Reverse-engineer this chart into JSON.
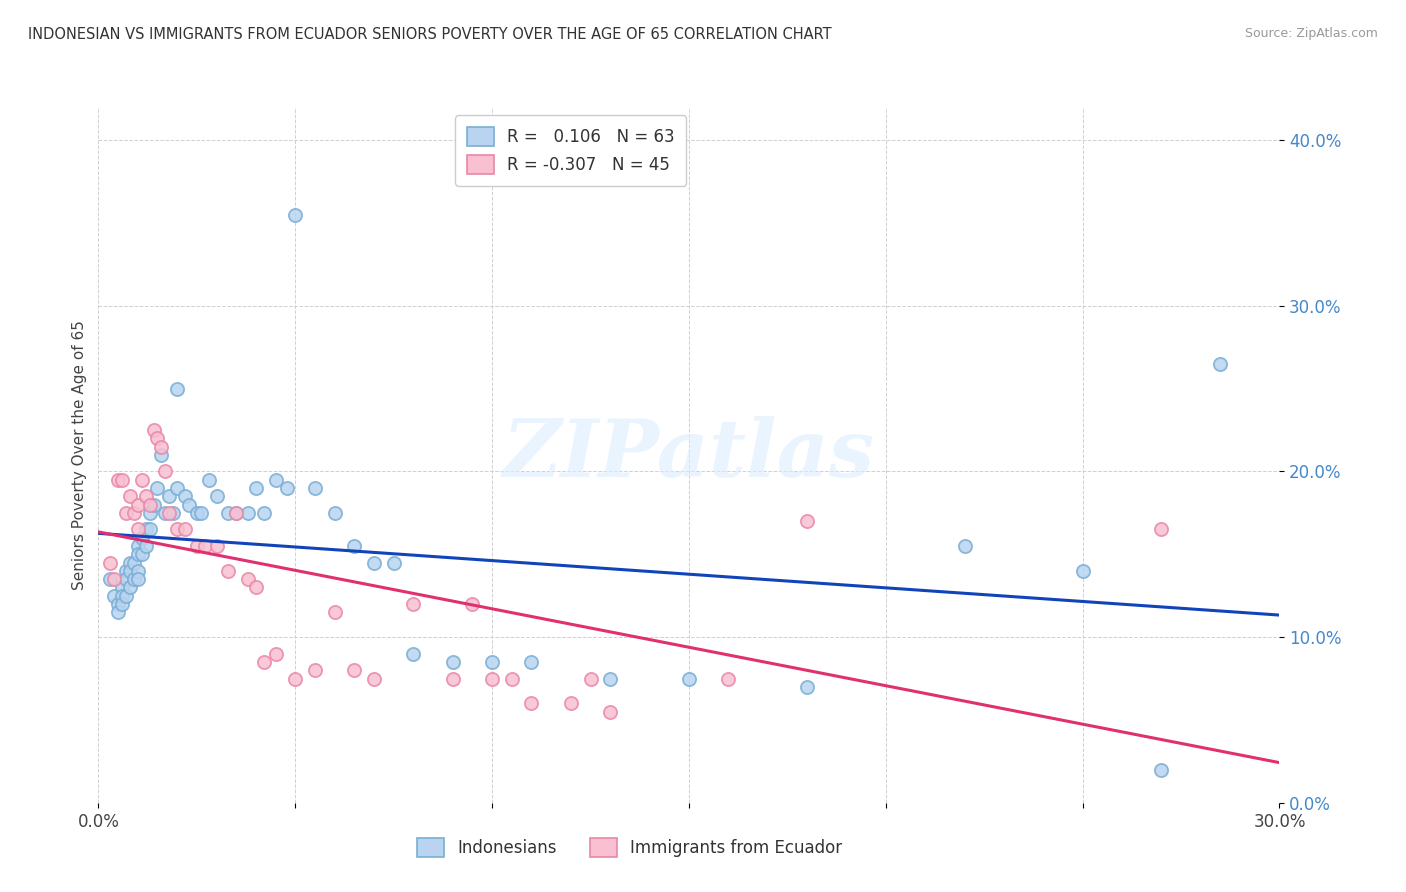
{
  "title": "INDONESIAN VS IMMIGRANTS FROM ECUADOR SENIORS POVERTY OVER THE AGE OF 65 CORRELATION CHART",
  "source": "Source: ZipAtlas.com",
  "ylabel": "Seniors Poverty Over the Age of 65",
  "xlim": [
    0.0,
    0.3
  ],
  "ylim": [
    0.0,
    0.42
  ],
  "yticks": [
    0.0,
    0.1,
    0.2,
    0.3,
    0.4
  ],
  "background_color": "#ffffff",
  "grid_color": "#d0d0d0",
  "blue_scatter_face": "#b8d4f0",
  "blue_scatter_edge": "#7aaed4",
  "pink_scatter_face": "#f8c0d0",
  "pink_scatter_edge": "#e888a8",
  "blue_line_color": "#1144bb",
  "pink_line_color": "#e03070",
  "legend_r_blue": "0.106",
  "legend_n_blue": "63",
  "legend_r_pink": "-0.307",
  "legend_n_pink": "45",
  "legend_label_blue": "Indonesians",
  "legend_label_pink": "Immigrants from Ecuador",
  "watermark": "ZIPatlas",
  "ytick_color": "#4488cc",
  "blue_x": [
    0.003,
    0.004,
    0.005,
    0.005,
    0.006,
    0.006,
    0.006,
    0.007,
    0.007,
    0.007,
    0.008,
    0.008,
    0.008,
    0.009,
    0.009,
    0.01,
    0.01,
    0.01,
    0.01,
    0.011,
    0.011,
    0.012,
    0.012,
    0.013,
    0.013,
    0.014,
    0.015,
    0.016,
    0.017,
    0.018,
    0.019,
    0.02,
    0.02,
    0.022,
    0.023,
    0.025,
    0.026,
    0.028,
    0.03,
    0.033,
    0.035,
    0.038,
    0.04,
    0.042,
    0.045,
    0.048,
    0.05,
    0.055,
    0.06,
    0.065,
    0.07,
    0.075,
    0.08,
    0.09,
    0.1,
    0.11,
    0.13,
    0.15,
    0.18,
    0.22,
    0.25,
    0.27,
    0.285
  ],
  "blue_y": [
    0.135,
    0.125,
    0.12,
    0.115,
    0.13,
    0.125,
    0.12,
    0.14,
    0.135,
    0.125,
    0.145,
    0.14,
    0.13,
    0.145,
    0.135,
    0.155,
    0.15,
    0.14,
    0.135,
    0.16,
    0.15,
    0.165,
    0.155,
    0.175,
    0.165,
    0.18,
    0.19,
    0.21,
    0.175,
    0.185,
    0.175,
    0.25,
    0.19,
    0.185,
    0.18,
    0.175,
    0.175,
    0.195,
    0.185,
    0.175,
    0.175,
    0.175,
    0.19,
    0.175,
    0.195,
    0.19,
    0.355,
    0.19,
    0.175,
    0.155,
    0.145,
    0.145,
    0.09,
    0.085,
    0.085,
    0.085,
    0.075,
    0.075,
    0.07,
    0.155,
    0.14,
    0.02,
    0.265
  ],
  "pink_x": [
    0.003,
    0.004,
    0.005,
    0.006,
    0.007,
    0.008,
    0.009,
    0.01,
    0.01,
    0.011,
    0.012,
    0.013,
    0.014,
    0.015,
    0.016,
    0.017,
    0.018,
    0.02,
    0.022,
    0.025,
    0.027,
    0.03,
    0.033,
    0.035,
    0.038,
    0.04,
    0.042,
    0.045,
    0.05,
    0.055,
    0.06,
    0.065,
    0.07,
    0.08,
    0.09,
    0.095,
    0.1,
    0.105,
    0.11,
    0.12,
    0.125,
    0.13,
    0.16,
    0.18,
    0.27
  ],
  "pink_y": [
    0.145,
    0.135,
    0.195,
    0.195,
    0.175,
    0.185,
    0.175,
    0.18,
    0.165,
    0.195,
    0.185,
    0.18,
    0.225,
    0.22,
    0.215,
    0.2,
    0.175,
    0.165,
    0.165,
    0.155,
    0.155,
    0.155,
    0.14,
    0.175,
    0.135,
    0.13,
    0.085,
    0.09,
    0.075,
    0.08,
    0.115,
    0.08,
    0.075,
    0.12,
    0.075,
    0.12,
    0.075,
    0.075,
    0.06,
    0.06,
    0.075,
    0.055,
    0.075,
    0.17,
    0.165
  ]
}
